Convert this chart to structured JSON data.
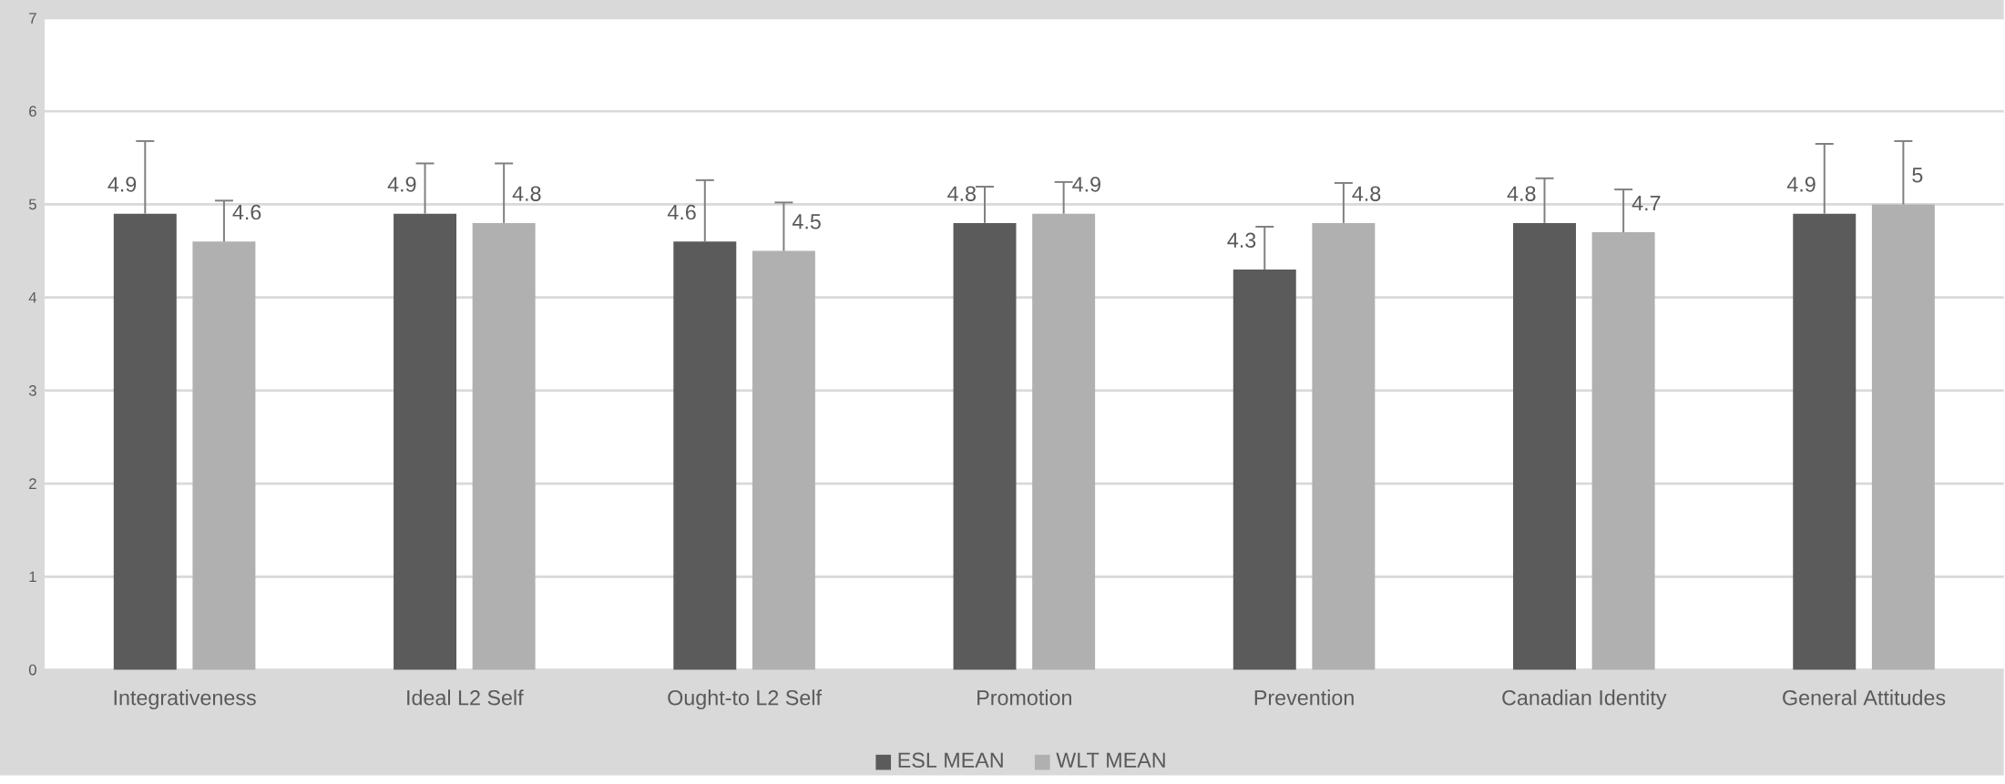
{
  "chart_data": {
    "type": "bar",
    "categories": [
      "Integrativeness",
      "Ideal L2 Self",
      "Ought-to L2 Self",
      "Promotion",
      "Prevention",
      "Canadian Identity",
      "General Attitudes"
    ],
    "series": [
      {
        "name": "ESL MEAN",
        "color": "#5b5b5b",
        "values": [
          4.9,
          4.9,
          4.6,
          4.8,
          4.3,
          4.8,
          4.9
        ],
        "errors": [
          [
            4.9,
            5.68
          ],
          [
            4.9,
            5.44
          ],
          [
            4.6,
            5.26
          ],
          [
            4.8,
            5.19
          ],
          [
            4.3,
            4.76
          ],
          [
            4.8,
            5.28
          ],
          [
            4.9,
            5.65
          ]
        ]
      },
      {
        "name": "WLT MEAN",
        "color": "#b0b0b0",
        "values": [
          4.6,
          4.8,
          4.5,
          4.9,
          4.8,
          4.7,
          5
        ],
        "errors": [
          [
            4.6,
            5.04
          ],
          [
            4.8,
            5.44
          ],
          [
            4.5,
            5.02
          ],
          [
            4.9,
            5.24
          ],
          [
            4.8,
            5.23
          ],
          [
            4.7,
            5.16
          ],
          [
            5,
            5.68
          ]
        ]
      }
    ],
    "ylim": [
      0,
      7
    ],
    "yticks": [
      0,
      1,
      2,
      3,
      4,
      5,
      6,
      7
    ],
    "grid": "y",
    "legend": "bottom",
    "data_labels": true
  }
}
